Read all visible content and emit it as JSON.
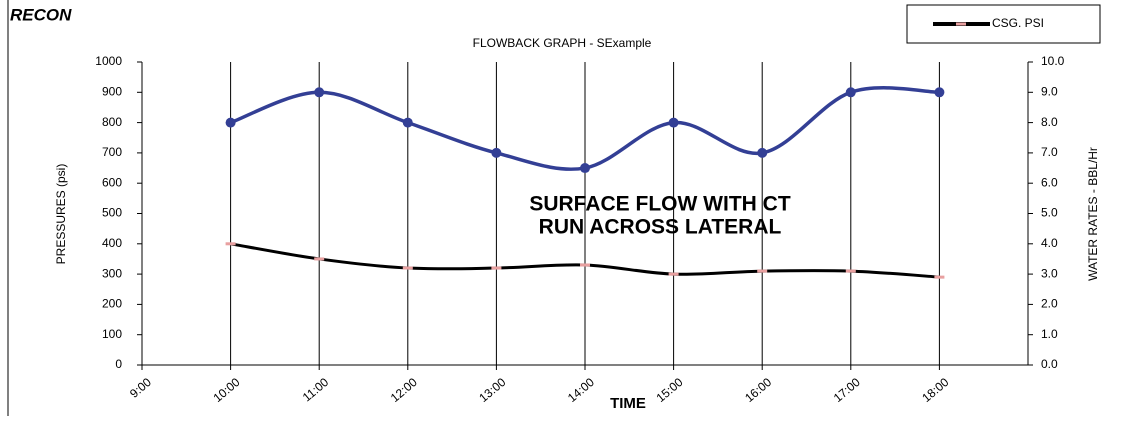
{
  "brand": "RECON",
  "chart_data": {
    "type": "line",
    "title": "FLOWBACK GRAPH - SExample",
    "annotation": [
      "SURFACE FLOW WITH CT",
      "RUN ACROSS LATERAL"
    ],
    "x_label": "TIME",
    "y_label": "PRESSURES (psi)",
    "y2_label": "WATER RATES - BBL/Hr",
    "categories": [
      "9:00",
      "10:00",
      "11:00",
      "12:00",
      "13:00",
      "14:00",
      "15:00",
      "16:00",
      "17:00",
      "18:00"
    ],
    "series": [
      {
        "name": "CSG. PSI",
        "color": "#000000",
        "marker_color": "#e8a0a0",
        "values": [
          null,
          400,
          350,
          320,
          320,
          330,
          300,
          310,
          310,
          290
        ]
      },
      {
        "color": "#333f95",
        "axis": "y2",
        "values": [
          null,
          8.0,
          9.0,
          8.0,
          7.0,
          6.5,
          8.0,
          7.0,
          9.0,
          9.0
        ]
      }
    ],
    "ylim": [
      0,
      1000
    ],
    "yticks": [
      0,
      100,
      200,
      300,
      400,
      500,
      600,
      700,
      800,
      900,
      1000
    ],
    "y2lim": [
      0,
      10
    ],
    "y2ticks": [
      {
        "value": 0,
        "label": "0.0"
      },
      {
        "value": 1,
        "label": "1.0"
      },
      {
        "value": 2,
        "label": "2.0"
      },
      {
        "value": 3,
        "label": "3.0"
      },
      {
        "value": 4,
        "label": "4.0"
      },
      {
        "value": 5,
        "label": "5.0"
      },
      {
        "value": 6,
        "label": "6.0"
      },
      {
        "value": 7,
        "label": "7.0"
      },
      {
        "value": 8,
        "label": "8.0"
      },
      {
        "value": 9,
        "label": "9.0"
      },
      {
        "value": 10,
        "label": "10.0"
      }
    ],
    "legend": "top-right",
    "smooth": true
  }
}
